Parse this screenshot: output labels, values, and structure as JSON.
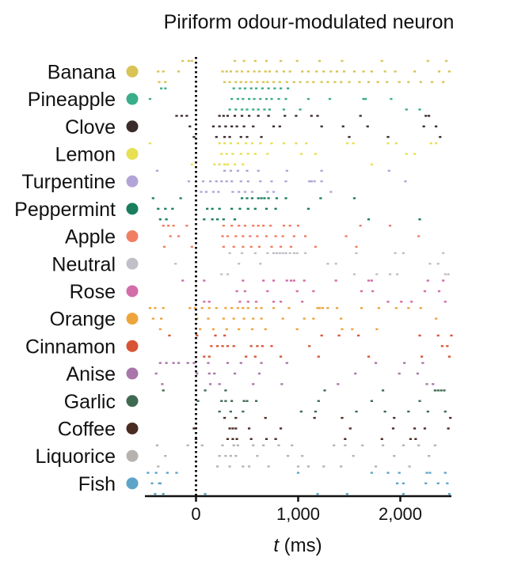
{
  "title": "Piriform odour-modulated neuron",
  "chart_data": {
    "type": "raster",
    "title": "Piriform odour-modulated neuron",
    "xlabel_var": "t",
    "xlabel_unit": "(ms)",
    "xlim": [
      -500,
      2500
    ],
    "xticks": [
      {
        "value": 0,
        "label": "0"
      },
      {
        "value": 1000,
        "label": "1,000"
      },
      {
        "value": 2000,
        "label": "2,000"
      }
    ],
    "stimulus_onset_ms": 0,
    "odours": [
      {
        "name": "Banana",
        "color": "#d8c455",
        "spikes": [
          [
            -130,
            -70,
            -40,
            380,
            470,
            580,
            690,
            830,
            990,
            1210,
            1430,
            1820,
            2270,
            2450
          ],
          [
            -370,
            -320,
            -170,
            260,
            300,
            340,
            400,
            450,
            510,
            570,
            620,
            680,
            720,
            790,
            860,
            920,
            1040,
            1100,
            1180,
            1250,
            1320,
            1380,
            1450,
            1550,
            1640,
            1720,
            1850,
            1950,
            2140,
            2380,
            2480
          ],
          [
            -360,
            -300,
            280,
            330,
            390,
            440,
            490,
            540,
            600,
            660,
            700,
            760,
            820,
            890,
            960,
            1020,
            1090,
            1150,
            1230,
            1290,
            1360,
            1420,
            1500,
            1600,
            1690,
            1780,
            1870,
            1990,
            2080,
            2200,
            2310,
            2420
          ]
        ]
      },
      {
        "name": "Pineapple",
        "color": "#3aad8a",
        "spikes": [
          [
            -340,
            -300,
            370,
            430,
            480,
            540,
            590,
            650,
            710,
            770,
            830,
            900
          ],
          [
            -450,
            350,
            410,
            460,
            520,
            570,
            630,
            690,
            740,
            810,
            880,
            1100,
            1310,
            1640,
            1660,
            1910
          ],
          [
            330,
            390,
            450,
            500,
            560,
            610,
            670,
            720,
            860,
            1020,
            2060,
            2190
          ]
        ]
      },
      {
        "name": "Clove",
        "color": "#3b2b2b",
        "spikes": [
          [
            -190,
            -140,
            -90,
            230,
            270,
            310,
            380,
            450,
            520,
            610,
            710,
            870,
            980,
            1130,
            1190,
            1610,
            2250,
            2280
          ],
          [
            -60,
            170,
            230,
            290,
            350,
            400,
            470,
            560,
            760,
            820,
            1230,
            1440,
            1680,
            2230,
            2350
          ],
          [
            -20,
            200,
            280,
            330,
            440,
            500,
            640,
            1500,
            1880,
            2390
          ]
        ]
      },
      {
        "name": "Lemon",
        "color": "#e7e052",
        "spikes": [
          [
            -450,
            230,
            280,
            340,
            410,
            490,
            550,
            630,
            740,
            860,
            980,
            1080,
            1480,
            1540,
            1880,
            1960,
            2300,
            2350
          ],
          [
            250,
            300,
            360,
            440,
            510,
            580,
            700,
            1030,
            1170,
            2060,
            2140
          ],
          [
            -40,
            180,
            230,
            280,
            310,
            380,
            460,
            1720
          ]
        ]
      },
      {
        "name": "Turpentine",
        "color": "#b3a4d8",
        "spikes": [
          [
            -380,
            280,
            340,
            410,
            500,
            610,
            890,
            1230,
            1890
          ],
          [
            -70,
            70,
            140,
            200,
            250,
            300,
            350,
            440,
            510,
            630,
            740,
            880,
            1110,
            1130,
            1160,
            1230,
            2050
          ],
          [
            50,
            100,
            170,
            220,
            360,
            420,
            480,
            550,
            700,
            760,
            1320
          ]
        ]
      },
      {
        "name": "Peppermint",
        "color": "#187e5e",
        "spikes": [
          [
            -420,
            -150,
            450,
            500,
            550,
            610,
            640,
            670,
            710,
            790,
            880,
            1220,
            1550
          ],
          [
            -370,
            -300,
            -230,
            110,
            160,
            230,
            350,
            430,
            510,
            580,
            690,
            780,
            1100
          ],
          [
            -350,
            -290,
            80,
            160,
            210,
            270,
            380,
            1690,
            2190
          ]
        ]
      },
      {
        "name": "Apple",
        "color": "#f17e63",
        "spikes": [
          [
            -320,
            -270,
            -220,
            -90,
            270,
            350,
            420,
            480,
            560,
            610,
            660,
            730,
            860,
            920,
            1000,
            1610,
            1900
          ],
          [
            -250,
            -170,
            260,
            310,
            390,
            460,
            530,
            600,
            690,
            780,
            850,
            960,
            1070,
            1470,
            2180
          ],
          [
            -310,
            -40,
            270,
            370,
            460,
            540,
            620,
            740,
            830,
            930,
            1170,
            1570
          ]
        ]
      },
      {
        "name": "Neutral",
        "color": "#c2bfc8",
        "spikes": [
          [
            330,
            450,
            580,
            700,
            760,
            790,
            820,
            850,
            880,
            920,
            960,
            990,
            1070,
            1570,
            1950,
            2030,
            2420
          ],
          [
            -200,
            420,
            630,
            1290,
            1370,
            2290,
            2370
          ],
          [
            250,
            310,
            1550,
            1770,
            1900,
            1970,
            2440,
            2470
          ]
        ]
      },
      {
        "name": "Rose",
        "color": "#d36da9",
        "spikes": [
          [
            -130,
            80,
            460,
            660,
            760,
            890,
            930,
            960,
            1060,
            1370,
            1690,
            1720,
            2270,
            2420
          ],
          [
            400,
            480,
            700,
            990,
            1150,
            1620,
            1730,
            2240,
            2380
          ],
          [
            80,
            130,
            430,
            510,
            590,
            760,
            830,
            1040,
            1880,
            2010,
            2110,
            2440
          ]
        ]
      },
      {
        "name": "Orange",
        "color": "#eea43c",
        "spikes": [
          [
            -450,
            -400,
            -320,
            -60,
            -10,
            60,
            130,
            200,
            290,
            350,
            410,
            460,
            510,
            590,
            640,
            760,
            910,
            1190,
            1210,
            1240,
            1290,
            1380,
            1620,
            1790,
            1960,
            2080,
            2200
          ],
          [
            -420,
            -340,
            10,
            120,
            270,
            370,
            470,
            560,
            640,
            850,
            1060,
            1150,
            1420,
            2350
          ],
          [
            -350,
            40,
            170,
            300,
            420,
            550,
            680,
            990,
            1430,
            1530,
            1770
          ]
        ]
      },
      {
        "name": "Cinnamon",
        "color": "#d85534",
        "spikes": [
          [
            -260,
            10,
            190,
            280,
            1230,
            1400,
            1590,
            2190,
            2370,
            2500
          ],
          [
            150,
            210,
            260,
            310,
            370,
            540,
            600,
            650,
            740,
            1110,
            2410,
            2460
          ],
          [
            80,
            130,
            490,
            580,
            830,
            1200,
            1690,
            2210,
            2480
          ]
        ]
      },
      {
        "name": "Anise",
        "color": "#a976a9",
        "spikes": [
          [
            -350,
            -290,
            -220,
            -170,
            -80,
            -20,
            120,
            310,
            440,
            640,
            890,
            1760,
            2040,
            2220
          ],
          [
            -390,
            10,
            130,
            180,
            380,
            620,
            1560,
            1990,
            2170
          ],
          [
            -330,
            140,
            230,
            560,
            840,
            1390,
            2260,
            2320
          ]
        ]
      },
      {
        "name": "Garlic",
        "color": "#3e6a52",
        "spikes": [
          [
            -320,
            90,
            290,
            1260,
            1830,
            2340,
            2370,
            2400,
            2430
          ],
          [
            20,
            250,
            290,
            350,
            470,
            500,
            590,
            1200,
            1720,
            2190
          ],
          [
            230,
            340,
            460,
            1030,
            1170,
            1570,
            1850,
            2080,
            2270,
            2440
          ]
        ]
      },
      {
        "name": "Coffee",
        "color": "#4a2c22",
        "spikes": [
          [
            280,
            390,
            680,
            1160,
            1430,
            1940,
            2490
          ],
          [
            -20,
            330,
            360,
            390,
            520,
            830,
            1510,
            1930,
            2140,
            2240,
            2470
          ],
          [
            0,
            310,
            360,
            400,
            540,
            690,
            780,
            1460,
            1820,
            2150,
            2100
          ]
        ]
      },
      {
        "name": "Liquorice",
        "color": "#b8b2ae",
        "spikes": [
          [
            -380,
            -80,
            60,
            260,
            370,
            410,
            560,
            660,
            810,
            940,
            1350,
            1460,
            1630,
            1830,
            2030,
            2180,
            2340
          ],
          [
            -300,
            230,
            290,
            340,
            390,
            600,
            900,
            1040,
            1540,
            1940,
            2280
          ],
          [
            -370,
            210,
            330,
            460,
            520,
            710,
            1000,
            1100,
            1250,
            1420,
            1760,
            2090
          ]
        ]
      },
      {
        "name": "Fish",
        "color": "#5ea4c8",
        "spikes": [
          [
            -470,
            -390,
            -280,
            -190,
            1000,
            1720,
            1880,
            1990,
            2260,
            2290,
            2440
          ],
          [
            -430,
            -360,
            -350,
            1970,
            2030,
            2250,
            2370,
            2460
          ],
          [
            -400,
            -320,
            90,
            1190,
            1480,
            2030,
            2480
          ]
        ]
      }
    ]
  }
}
